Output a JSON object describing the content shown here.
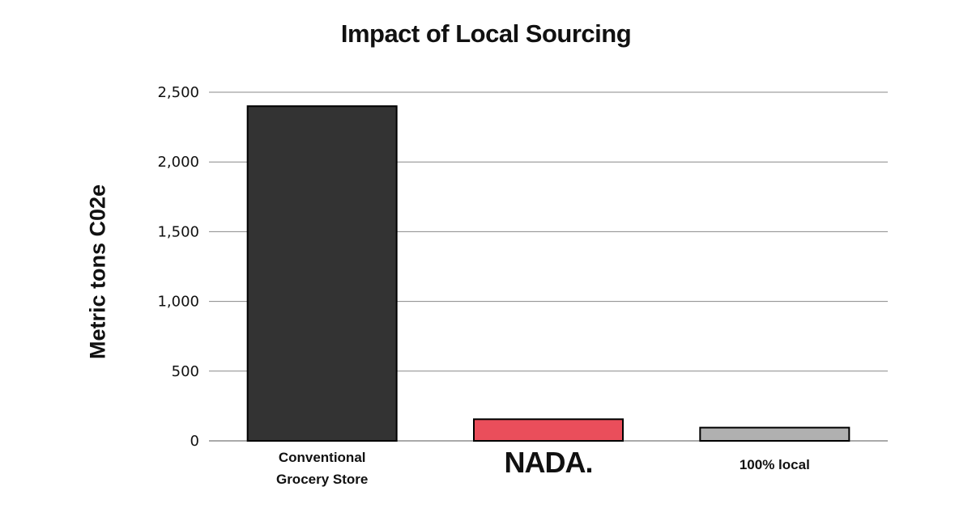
{
  "chart_data": {
    "type": "bar",
    "title": "Impact of Local Sourcing",
    "xlabel": "",
    "ylabel": "Metric tons C02e",
    "ylim": [
      0,
      2500
    ],
    "yticks": [
      0,
      500,
      1000,
      1500,
      2000,
      2500
    ],
    "ytick_labels": [
      "0",
      "500",
      "1,000",
      "1,500",
      "2,000",
      "2,500"
    ],
    "categories": [
      "Conventional Grocery Store",
      "NADA.",
      "100% local"
    ],
    "values": [
      2400,
      155,
      95
    ],
    "grid": true,
    "legend": "none"
  },
  "colors": {
    "bars": [
      "#333333",
      "#ea4e5b",
      "#b0b0b0"
    ],
    "bar_border": "#000000",
    "gridline": "#888888"
  }
}
